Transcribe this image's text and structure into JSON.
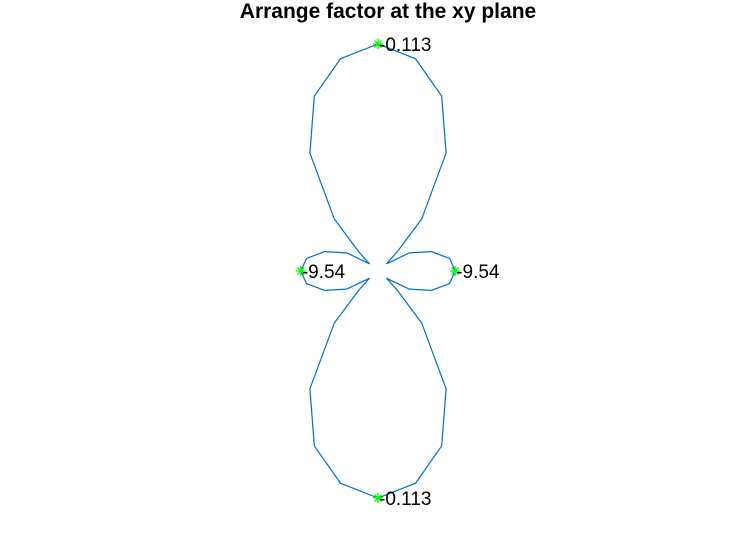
{
  "chart_data": {
    "type": "polar",
    "title": "Arrange factor at the xy plane",
    "axes_visible": false,
    "grid": false,
    "series": [
      {
        "color": "#0072BD",
        "points": [
          {
            "angle_deg": 90,
            "r": 1.0
          },
          {
            "angle_deg": 80,
            "r": 0.95
          },
          {
            "angle_deg": 70,
            "r": 0.82
          },
          {
            "angle_deg": 60,
            "r": 0.6
          },
          {
            "angle_deg": 50,
            "r": 0.3
          },
          {
            "angle_deg": 45,
            "r": 0.12
          },
          {
            "angle_deg": 40,
            "r": 0.05
          },
          {
            "angle_deg": 30,
            "r": 0.16
          },
          {
            "angle_deg": 20,
            "r": 0.25
          },
          {
            "angle_deg": 10,
            "r": 0.32
          },
          {
            "angle_deg": 0,
            "r": 0.34
          },
          {
            "angle_deg": -10,
            "r": 0.32
          },
          {
            "angle_deg": -20,
            "r": 0.25
          },
          {
            "angle_deg": -30,
            "r": 0.16
          },
          {
            "angle_deg": -40,
            "r": 0.05
          },
          {
            "angle_deg": -45,
            "r": 0.12
          },
          {
            "angle_deg": -50,
            "r": 0.3
          },
          {
            "angle_deg": -60,
            "r": 0.6
          },
          {
            "angle_deg": -70,
            "r": 0.82
          },
          {
            "angle_deg": -80,
            "r": 0.95
          },
          {
            "angle_deg": -90,
            "r": 1.0
          },
          {
            "angle_deg": -100,
            "r": 0.95
          },
          {
            "angle_deg": -110,
            "r": 0.82
          },
          {
            "angle_deg": -120,
            "r": 0.6
          },
          {
            "angle_deg": -130,
            "r": 0.3
          },
          {
            "angle_deg": -135,
            "r": 0.12
          },
          {
            "angle_deg": -140,
            "r": 0.05
          },
          {
            "angle_deg": -150,
            "r": 0.16
          },
          {
            "angle_deg": -160,
            "r": 0.25
          },
          {
            "angle_deg": -170,
            "r": 0.32
          },
          {
            "angle_deg": 180,
            "r": 0.34
          },
          {
            "angle_deg": 170,
            "r": 0.32
          },
          {
            "angle_deg": 160,
            "r": 0.25
          },
          {
            "angle_deg": 150,
            "r": 0.16
          },
          {
            "angle_deg": 140,
            "r": 0.05
          },
          {
            "angle_deg": 135,
            "r": 0.12
          },
          {
            "angle_deg": 130,
            "r": 0.3
          },
          {
            "angle_deg": 120,
            "r": 0.6
          },
          {
            "angle_deg": 110,
            "r": 0.82
          },
          {
            "angle_deg": 100,
            "r": 0.95
          },
          {
            "angle_deg": 90,
            "r": 1.0
          }
        ]
      }
    ],
    "markers": [
      {
        "angle_deg": 90,
        "r": 1.0,
        "label": "-0.113",
        "color": "#00FF00",
        "symbol": "*"
      },
      {
        "angle_deg": 180,
        "r": 0.34,
        "label": "-9.54",
        "color": "#00FF00",
        "symbol": "*"
      },
      {
        "angle_deg": 0,
        "r": 0.34,
        "label": "-9.54",
        "color": "#00FF00",
        "symbol": "*"
      },
      {
        "angle_deg": -90,
        "r": 1.0,
        "label": "-0.113",
        "color": "#00FF00",
        "symbol": "*"
      }
    ]
  }
}
